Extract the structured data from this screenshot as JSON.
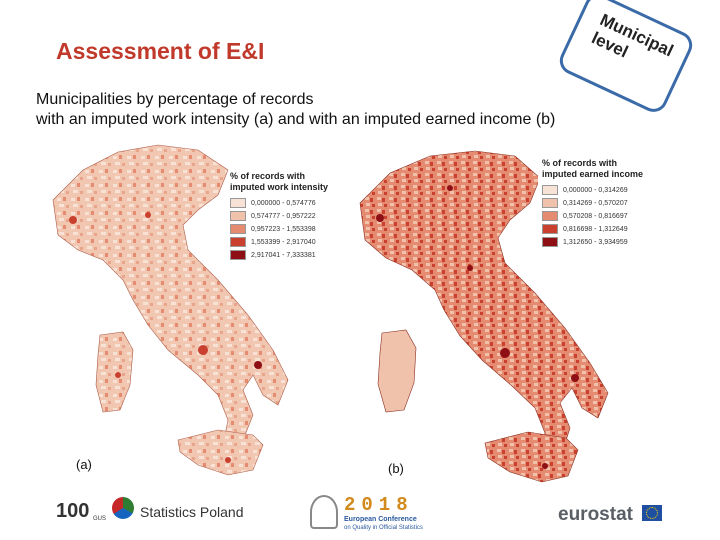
{
  "slide": {
    "title": "Assessment of E&I",
    "badge": "Municipal level",
    "subtitle_line1": "Municipalities by percentage of records",
    "subtitle_line2": "with an imputed work intensity (a) and with an imputed earned income (b)"
  },
  "map_a": {
    "caption": "(a)",
    "legend_title_line1": "% of records with",
    "legend_title_line2": "imputed work intensity",
    "classes": [
      {
        "label": "0,000000 - 0,574776",
        "color": "#f8e2d5"
      },
      {
        "label": "0,574777 - 0,957222",
        "color": "#f0c1ab"
      },
      {
        "label": "0,957223 - 1,553398",
        "color": "#e48b72"
      },
      {
        "label": "1,553399 - 2,917040",
        "color": "#c9402e"
      },
      {
        "label": "2,917041 - 7,333381",
        "color": "#8e0f14"
      }
    ]
  },
  "map_b": {
    "caption": "(b)",
    "legend_title_line1": "% of records with",
    "legend_title_line2": "imputed earned income",
    "classes": [
      {
        "label": "0,000000 - 0,314269",
        "color": "#f8e2d5"
      },
      {
        "label": "0,314269 - 0,570207",
        "color": "#f0c1ab"
      },
      {
        "label": "0,570208 - 0,816697",
        "color": "#e48b72"
      },
      {
        "label": "0,816698 - 1,312649",
        "color": "#c9402e"
      },
      {
        "label": "1,312650 - 3,934959",
        "color": "#8e0f14"
      }
    ]
  },
  "footer": {
    "gus": "100",
    "gus_small": "GUS",
    "statistics_poland": "Statistics Poland",
    "conference_year": "2018",
    "conference_name": "European Conference",
    "conference_sub": "on Quality in Official Statistics",
    "eurostat": "eurostat"
  }
}
